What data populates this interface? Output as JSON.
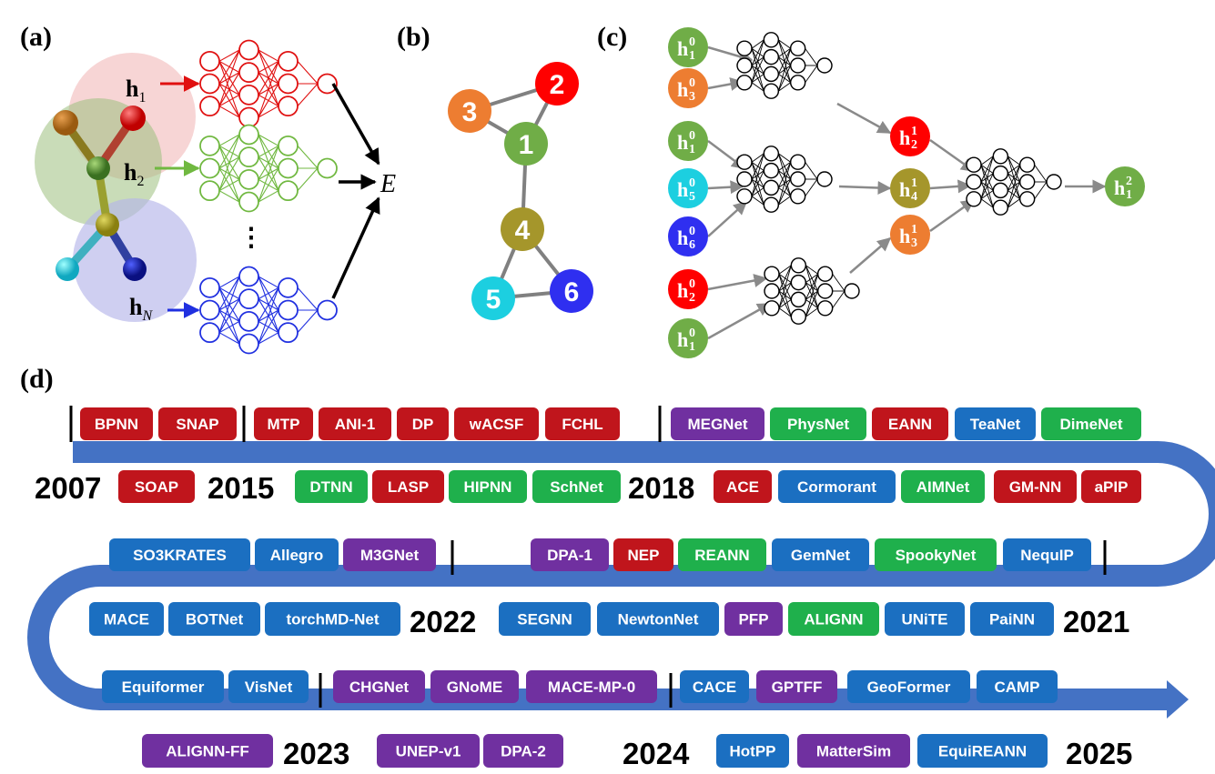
{
  "colors": {
    "red": "#c0151c",
    "green": "#1fb04c",
    "blue": "#1b6fc1",
    "purple": "#7030a0",
    "timeline": "#4472c4",
    "net_red": "#e01010",
    "net_green": "#70b840",
    "net_blue": "#2030e0",
    "node1": "#70ad47",
    "node2": "#ff0000",
    "node3": "#ed7d31",
    "node4": "#a5962b",
    "node5": "#1ccfe0",
    "node6": "#2f2ff0"
  },
  "panels": {
    "a": "(a)",
    "b": "(b)",
    "c": "(c)",
    "d": "(d)"
  },
  "panel_a": {
    "h1": "h",
    "h1_sub": "1",
    "h2": "h",
    "h2_sub": "2",
    "hN": "h",
    "hN_sub": "N",
    "ellipsis": "⋮",
    "energy": "E"
  },
  "panel_b": {
    "nodes": [
      "1",
      "2",
      "3",
      "4",
      "5",
      "6"
    ]
  },
  "panel_c": {
    "layer0": [
      {
        "base": "h",
        "sub": "1",
        "sup": "0",
        "color": "node1"
      },
      {
        "base": "h",
        "sub": "3",
        "sup": "0",
        "color": "node3"
      },
      {
        "base": "h",
        "sub": "1",
        "sup": "0",
        "color": "node1"
      },
      {
        "base": "h",
        "sub": "5",
        "sup": "0",
        "color": "node5"
      },
      {
        "base": "h",
        "sub": "6",
        "sup": "0",
        "color": "node6"
      },
      {
        "base": "h",
        "sub": "2",
        "sup": "0",
        "color": "node2"
      },
      {
        "base": "h",
        "sub": "1",
        "sup": "0",
        "color": "node1"
      }
    ],
    "layer1": [
      {
        "base": "h",
        "sub": "2",
        "sup": "1",
        "color": "node2"
      },
      {
        "base": "h",
        "sub": "4",
        "sup": "1",
        "color": "node4"
      },
      {
        "base": "h",
        "sub": "3",
        "sup": "1",
        "color": "node3"
      }
    ],
    "layer2": {
      "base": "h",
      "sub": "1",
      "sup": "2",
      "color": "node1"
    }
  },
  "timeline": {
    "years": [
      "2007",
      "2015",
      "2018",
      "2022",
      "2021",
      "2023",
      "2024",
      "2025"
    ],
    "rows": [
      {
        "name": "row1",
        "items": [
          {
            "label": "BPNN",
            "color": "red"
          },
          {
            "label": "SNAP",
            "color": "red"
          },
          {
            "label": "MTP",
            "color": "red"
          },
          {
            "label": "ANI-1",
            "color": "red"
          },
          {
            "label": "DP",
            "color": "red"
          },
          {
            "label": "wACSF",
            "color": "red"
          },
          {
            "label": "FCHL",
            "color": "red"
          },
          {
            "label": "MEGNet",
            "color": "purple"
          },
          {
            "label": "PhysNet",
            "color": "green"
          },
          {
            "label": "EANN",
            "color": "red"
          },
          {
            "label": "TeaNet",
            "color": "blue"
          },
          {
            "label": "DimeNet",
            "color": "green"
          }
        ]
      },
      {
        "name": "row2",
        "items": [
          {
            "label": "SOAP",
            "color": "red"
          },
          {
            "label": "DTNN",
            "color": "green"
          },
          {
            "label": "LASP",
            "color": "red"
          },
          {
            "label": "HIPNN",
            "color": "green"
          },
          {
            "label": "SchNet",
            "color": "green"
          },
          {
            "label": "ACE",
            "color": "red"
          },
          {
            "label": "Cormorant",
            "color": "blue"
          },
          {
            "label": "AIMNet",
            "color": "green"
          },
          {
            "label": "GM-NN",
            "color": "red"
          },
          {
            "label": "aPIP",
            "color": "red"
          }
        ]
      },
      {
        "name": "row3",
        "items": [
          {
            "label": "SO3KRATES",
            "color": "blue"
          },
          {
            "label": "Allegro",
            "color": "blue"
          },
          {
            "label": "M3GNet",
            "color": "purple"
          },
          {
            "label": "DPA-1",
            "color": "purple"
          },
          {
            "label": "NEP",
            "color": "red"
          },
          {
            "label": "REANN",
            "color": "green"
          },
          {
            "label": "GemNet",
            "color": "blue"
          },
          {
            "label": "SpookyNet",
            "color": "green"
          },
          {
            "label": "NequIP",
            "color": "blue"
          }
        ]
      },
      {
        "name": "row4",
        "items": [
          {
            "label": "MACE",
            "color": "blue"
          },
          {
            "label": "BOTNet",
            "color": "blue"
          },
          {
            "label": "torchMD-Net",
            "color": "blue"
          },
          {
            "label": "SEGNN",
            "color": "blue"
          },
          {
            "label": "NewtonNet",
            "color": "blue"
          },
          {
            "label": "PFP",
            "color": "purple"
          },
          {
            "label": "ALIGNN",
            "color": "green"
          },
          {
            "label": "UNiTE",
            "color": "blue"
          },
          {
            "label": "PaiNN",
            "color": "blue"
          }
        ]
      },
      {
        "name": "row5",
        "items": [
          {
            "label": "Equiformer",
            "color": "blue"
          },
          {
            "label": "VisNet",
            "color": "blue"
          },
          {
            "label": "CHGNet",
            "color": "purple"
          },
          {
            "label": "GNoME",
            "color": "purple"
          },
          {
            "label": "MACE-MP-0",
            "color": "purple"
          },
          {
            "label": "CACE",
            "color": "blue"
          },
          {
            "label": "GPTFF",
            "color": "purple"
          },
          {
            "label": "GeoFormer",
            "color": "blue"
          },
          {
            "label": "CAMP",
            "color": "blue"
          }
        ]
      },
      {
        "name": "row6",
        "items": [
          {
            "label": "ALIGNN-FF",
            "color": "purple"
          },
          {
            "label": "UNEP-v1",
            "color": "purple"
          },
          {
            "label": "DPA-2",
            "color": "purple"
          },
          {
            "label": "HotPP",
            "color": "blue"
          },
          {
            "label": "MatterSim",
            "color": "purple"
          },
          {
            "label": "EquiREANN",
            "color": "blue"
          }
        ]
      }
    ]
  }
}
